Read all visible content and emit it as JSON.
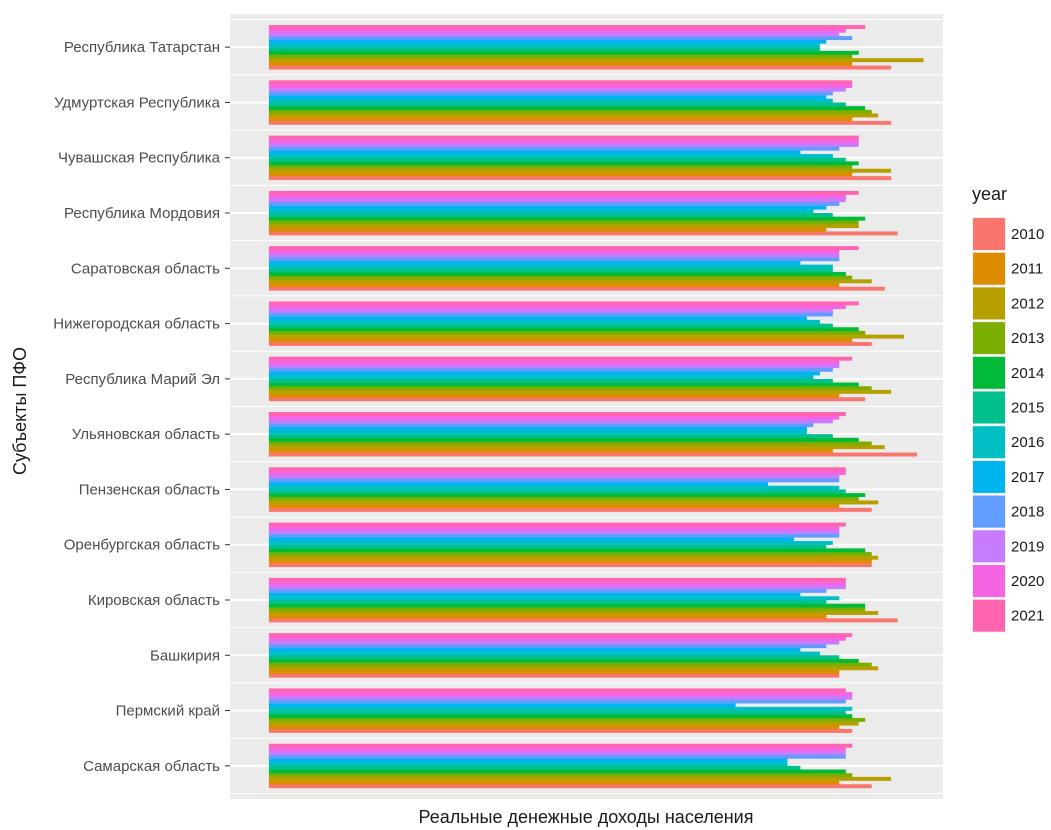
{
  "chart_data": {
    "type": "bar",
    "orientation": "horizontal",
    "ylabel": "Субъекты ПФО",
    "xlabel": "Реальные денежные доходы населения",
    "xlim": [
      -6,
      104
    ],
    "grid": true,
    "x_tick_labels_shown": false,
    "legend_position": "right",
    "legend": {
      "title": "year"
    },
    "categories": [
      "Республика Татарстан",
      "Удмуртская Республика",
      "Чувашская Республика",
      "Республика Мордовия",
      "Саратовская область",
      "Нижегородская область",
      "Республика Марий Эл",
      "Ульяновская область",
      "Пензенская область",
      "Оренбургская область",
      "Кировская область",
      "Башкирия",
      "Пермский край",
      "Самарская область"
    ],
    "series": [
      {
        "name": "2010",
        "color": "#F8766D",
        "values": [
          96,
          96,
          96,
          97,
          95,
          93,
          92,
          100,
          93,
          93,
          97,
          88,
          90,
          93
        ]
      },
      {
        "name": "2011",
        "color": "#DE8C00",
        "values": [
          90,
          90,
          90,
          86,
          88,
          90,
          88,
          87,
          88,
          93,
          86,
          88,
          88,
          88
        ]
      },
      {
        "name": "2012",
        "color": "#B79F00",
        "values": [
          101,
          94,
          96,
          91,
          93,
          98,
          96,
          95,
          94,
          94,
          94,
          94,
          91,
          96
        ]
      },
      {
        "name": "2013",
        "color": "#7CAE00",
        "values": [
          90,
          93,
          90,
          91,
          90,
          92,
          93,
          93,
          91,
          93,
          92,
          93,
          92,
          90
        ]
      },
      {
        "name": "2014",
        "color": "#00BA38",
        "values": [
          91,
          92,
          91,
          92,
          89,
          91,
          91,
          91,
          92,
          92,
          92,
          91,
          90,
          89
        ]
      },
      {
        "name": "2015",
        "color": "#00C08B",
        "values": [
          85,
          89,
          89,
          87,
          87,
          87,
          87,
          87,
          89,
          86,
          86,
          88,
          89,
          82
        ]
      },
      {
        "name": "2016",
        "color": "#00BFC4",
        "values": [
          85,
          87,
          87,
          84,
          87,
          85,
          84,
          83,
          88,
          87,
          88,
          85,
          90,
          80
        ]
      },
      {
        "name": "2017",
        "color": "#00B4F0",
        "values": [
          86,
          86,
          82,
          86,
          82,
          83,
          85,
          83,
          77,
          81,
          82,
          82,
          72,
          80
        ]
      },
      {
        "name": "2018",
        "color": "#619CFF",
        "values": [
          90,
          87,
          88,
          88,
          88,
          87,
          87,
          84,
          88,
          88,
          86,
          86,
          89,
          89
        ]
      },
      {
        "name": "2019",
        "color": "#C77CFF",
        "values": [
          88,
          89,
          91,
          89,
          88,
          87,
          88,
          87,
          88,
          88,
          89,
          88,
          90,
          89
        ]
      },
      {
        "name": "2020",
        "color": "#F564E3",
        "values": [
          89,
          90,
          91,
          89,
          88,
          89,
          88,
          88,
          89,
          88,
          89,
          89,
          90,
          89
        ]
      },
      {
        "name": "2021",
        "color": "#FF64B0",
        "values": [
          92,
          90,
          91,
          91,
          91,
          91,
          90,
          89,
          89,
          89,
          89,
          90,
          89,
          90
        ]
      }
    ]
  }
}
